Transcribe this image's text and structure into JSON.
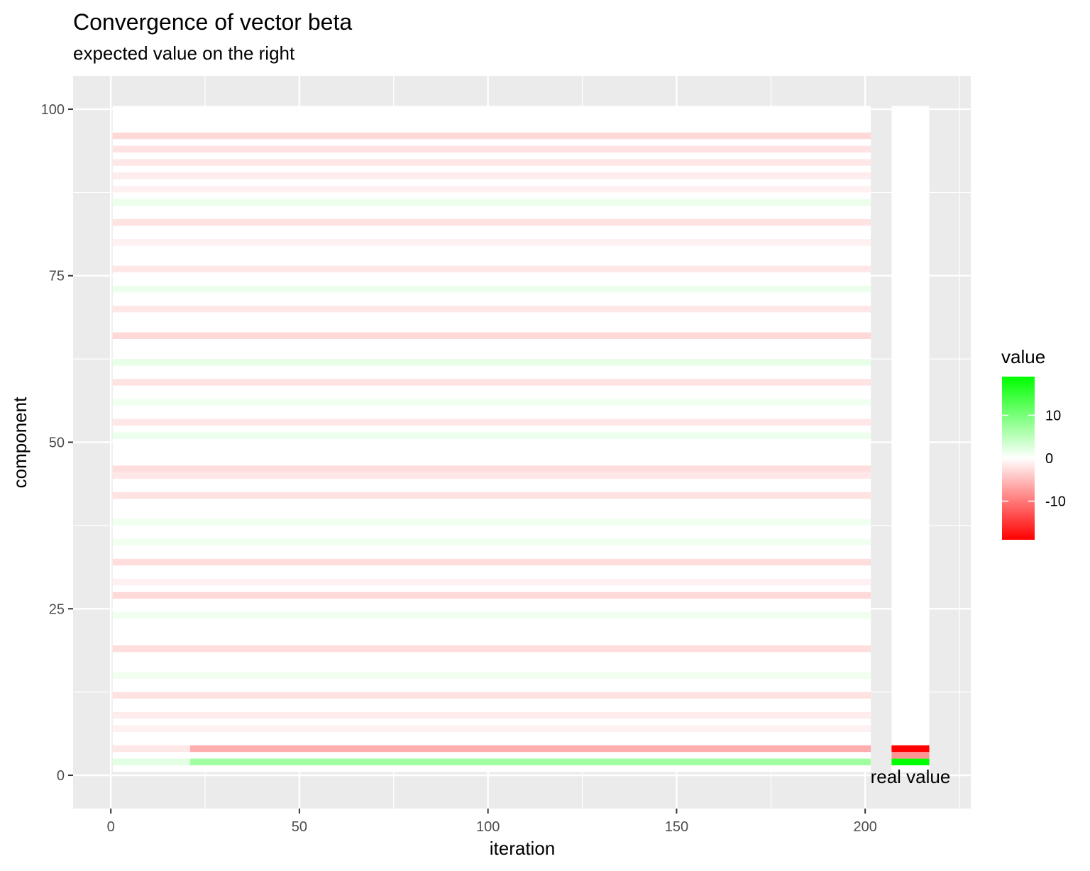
{
  "chart_data": {
    "type": "heatmap",
    "title": "Convergence of vector beta",
    "subtitle": "expected value on the right",
    "xlabel": "iteration",
    "ylabel": "component",
    "xlim": [
      -10,
      228
    ],
    "ylim": [
      -5,
      105
    ],
    "x_ticks": [
      0,
      50,
      100,
      150,
      200
    ],
    "y_ticks": [
      0,
      25,
      50,
      75,
      100
    ],
    "iterations": [
      1,
      201
    ],
    "components": [
      1,
      100
    ],
    "real_value_x": 212,
    "real_value_label": "real value",
    "legend": {
      "title": "value",
      "position": "right",
      "limits": [
        -19,
        19
      ],
      "ticks": [
        10,
        0,
        -10
      ],
      "tick_labels": [
        "10",
        "0",
        "-10"
      ]
    },
    "colors": {
      "low": "#ff0000",
      "mid": "#ffffff",
      "high": "#00ff00",
      "panel": "#ebebeb",
      "grid": "#ffffff"
    },
    "real_values": [
      {
        "component": 1,
        "value": 0
      },
      {
        "component": 2,
        "value": 20
      },
      {
        "component": 3,
        "value": -8
      },
      {
        "component": 4,
        "value": -20
      }
    ],
    "converged_stripes": [
      {
        "component": 2,
        "value": 3.5
      },
      {
        "component": 4,
        "value": -3
      }
    ],
    "faint_rows": [
      {
        "component": 96,
        "value": -0.8
      },
      {
        "component": 94,
        "value": -0.6
      },
      {
        "component": 92,
        "value": -0.5
      },
      {
        "component": 90,
        "value": -0.4
      },
      {
        "component": 88,
        "value": -0.3
      },
      {
        "component": 86,
        "value": 0.4
      },
      {
        "component": 83,
        "value": -0.6
      },
      {
        "component": 80,
        "value": -0.3
      },
      {
        "component": 76,
        "value": -0.5
      },
      {
        "component": 73,
        "value": 0.4
      },
      {
        "component": 70,
        "value": -0.5
      },
      {
        "component": 66,
        "value": -0.8
      },
      {
        "component": 62,
        "value": 0.5
      },
      {
        "component": 59,
        "value": -0.6
      },
      {
        "component": 56,
        "value": 0.3
      },
      {
        "component": 53,
        "value": -0.5
      },
      {
        "component": 51,
        "value": 0.4
      },
      {
        "component": 46,
        "value": -0.7
      },
      {
        "component": 45,
        "value": -0.5
      },
      {
        "component": 42,
        "value": -0.6
      },
      {
        "component": 38,
        "value": 0.3
      },
      {
        "component": 35,
        "value": 0.3
      },
      {
        "component": 32,
        "value": -0.7
      },
      {
        "component": 29,
        "value": -0.3
      },
      {
        "component": 27,
        "value": -0.8
      },
      {
        "component": 24,
        "value": 0.3
      },
      {
        "component": 19,
        "value": -0.7
      },
      {
        "component": 15,
        "value": 0.3
      },
      {
        "component": 12,
        "value": -0.6
      },
      {
        "component": 9,
        "value": -0.4
      },
      {
        "component": 7,
        "value": -0.3
      }
    ]
  }
}
